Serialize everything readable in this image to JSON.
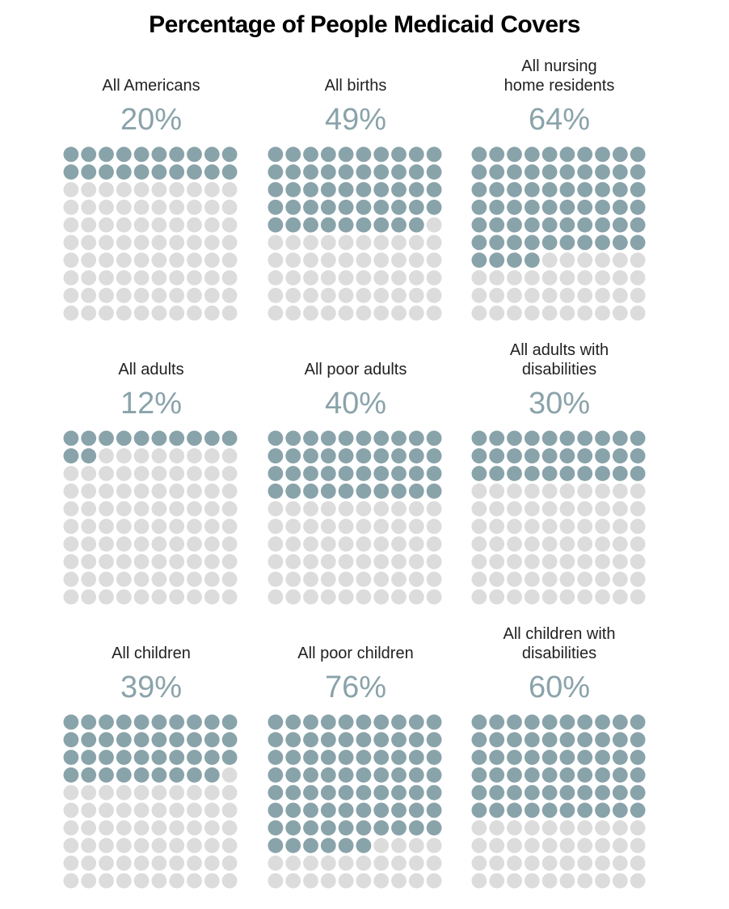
{
  "title": "Percentage of People Medicaid Covers",
  "colors": {
    "covered": "#89a3aa",
    "not_covered": "#dcdcdc",
    "value_text": "#8aa3aa",
    "title_text": "#000000"
  },
  "chart_data": {
    "type": "waffle",
    "title": "Percentage of People Medicaid Covers",
    "grid": {
      "rows": 10,
      "cols": 10,
      "unit": "1 dot = 1%"
    },
    "panels": [
      {
        "label_lines": [
          "All Americans"
        ],
        "value": 20,
        "value_label": "20%"
      },
      {
        "label_lines": [
          "All births"
        ],
        "value": 49,
        "value_label": "49%"
      },
      {
        "label_lines": [
          "All nursing",
          "home residents"
        ],
        "value": 64,
        "value_label": "64%"
      },
      {
        "label_lines": [
          "All adults"
        ],
        "value": 12,
        "value_label": "12%"
      },
      {
        "label_lines": [
          "All poor adults"
        ],
        "value": 40,
        "value_label": "40%"
      },
      {
        "label_lines": [
          "All adults with",
          "disabilities"
        ],
        "value": 30,
        "value_label": "30%"
      },
      {
        "label_lines": [
          "All children"
        ],
        "value": 39,
        "value_label": "39%"
      },
      {
        "label_lines": [
          "All poor children"
        ],
        "value": 76,
        "value_label": "76%"
      },
      {
        "label_lines": [
          "All children with",
          "disabilities"
        ],
        "value": 60,
        "value_label": "60%"
      }
    ]
  }
}
